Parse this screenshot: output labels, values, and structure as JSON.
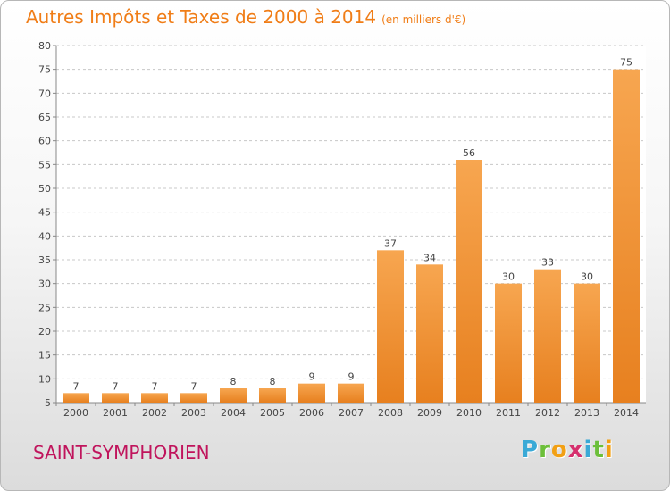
{
  "title": "Autres Impôts et Taxes de 2000 à 2014",
  "subtitle": "(en milliers d'€)",
  "city": "SAINT-SYMPHORIEN",
  "logo": {
    "letters": [
      "P",
      "r",
      "o",
      "x",
      "i",
      "t",
      "i"
    ],
    "colors": [
      "#3aa9d6",
      "#6cbf3a",
      "#f2a014",
      "#d6306e",
      "#3aa9d6",
      "#6cbf3a",
      "#f2a014"
    ]
  },
  "colors": {
    "bar": "#f59a3c",
    "title": "#f07d17",
    "city": "#c0145c",
    "grid": "#c8c8c8"
  },
  "chart_data": {
    "type": "bar",
    "title": "Autres Impôts et Taxes de 2000 à 2014",
    "subtitle": "(en milliers d'€)",
    "xlabel": "",
    "ylabel": "",
    "categories": [
      "2000",
      "2001",
      "2002",
      "2003",
      "2004",
      "2005",
      "2006",
      "2007",
      "2008",
      "2009",
      "2010",
      "2011",
      "2012",
      "2013",
      "2014"
    ],
    "values": [
      7,
      7,
      7,
      7,
      8,
      8,
      9,
      9,
      37,
      34,
      56,
      30,
      33,
      30,
      75
    ],
    "ylim": [
      5,
      80
    ],
    "yticks": [
      5,
      10,
      15,
      20,
      25,
      30,
      35,
      40,
      45,
      50,
      55,
      60,
      65,
      70,
      75,
      80
    ],
    "grid": true,
    "data_labels": true
  }
}
